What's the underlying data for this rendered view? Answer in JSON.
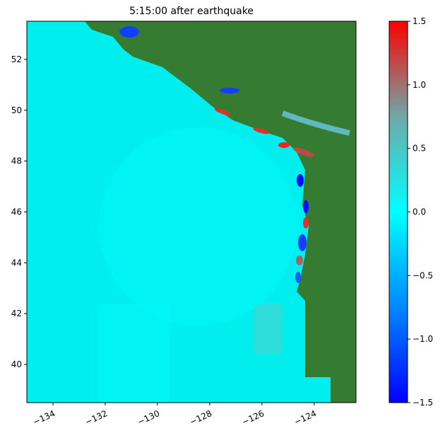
{
  "chart_data": {
    "type": "map",
    "title": "5:15:00 after earthquake",
    "xlim": [
      -135,
      -122.4
    ],
    "ylim": [
      38.5,
      53.5
    ],
    "xticks": [
      {
        "value": -134,
        "label": "−134"
      },
      {
        "value": -132,
        "label": "−132"
      },
      {
        "value": -130,
        "label": "−130"
      },
      {
        "value": -128,
        "label": "−128"
      },
      {
        "value": -126,
        "label": "−126"
      },
      {
        "value": -124,
        "label": "−124"
      }
    ],
    "yticks": [
      40,
      42,
      44,
      46,
      48,
      50,
      52
    ],
    "colorbar": {
      "lim": [
        -1.5,
        1.5
      ],
      "ticks": [
        {
          "value": -1.5,
          "label": "−1.5"
        },
        {
          "value": -1.0,
          "label": "−1.0"
        },
        {
          "value": -0.5,
          "label": "−0.5"
        },
        {
          "value": 0,
          "label": "0.0"
        },
        0.5,
        {
          "value": 1.0,
          "label": "1.0"
        },
        1.5
      ],
      "colors": [
        "#0000ff",
        "#0088ff",
        "#00ffff",
        "#70a8a8",
        "#ff0000"
      ]
    },
    "land_color": "#367b32",
    "ocean_color": "#00eeee"
  }
}
